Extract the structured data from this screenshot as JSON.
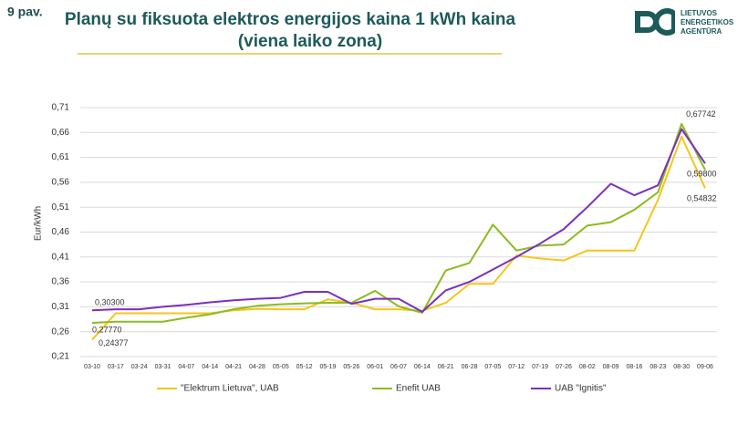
{
  "figure_label": "9 pav.",
  "logo": [
    "LIETUVOS",
    "ENERGETIKOS",
    "AGENTŪRA"
  ],
  "chart_data": {
    "type": "line",
    "title": [
      "Planų su fiksuota elektros energijos kaina 1 kWh kaina",
      "(viena laiko zona)"
    ],
    "y_label": "Eur/kWh",
    "categories": [
      "03-10",
      "03-17",
      "03-24",
      "03-31",
      "04-07",
      "04-14",
      "04-21",
      "04-28",
      "05-05",
      "05-12",
      "05-19",
      "05-26",
      "06-01",
      "06-07",
      "06-14",
      "06-21",
      "06-28",
      "07-05",
      "07-12",
      "07-19",
      "07-26",
      "08-02",
      "08-09",
      "08-16",
      "08-23",
      "08-30",
      "09-06"
    ],
    "ylim": [
      0.21,
      0.71
    ],
    "yticks": [
      {
        "value": 0.21,
        "label": "0,21"
      },
      {
        "value": 0.26,
        "label": "0,26"
      },
      {
        "value": 0.31,
        "label": "0,31"
      },
      {
        "value": 0.36,
        "label": "0,36"
      },
      {
        "value": 0.41,
        "label": "0,41"
      },
      {
        "value": 0.46,
        "label": "0,46"
      },
      {
        "value": 0.51,
        "label": "0,51"
      },
      {
        "value": 0.56,
        "label": "0,56"
      },
      {
        "value": 0.61,
        "label": "0,61"
      },
      {
        "value": 0.66,
        "label": "0,66"
      },
      {
        "value": 0.71,
        "label": "0,71"
      }
    ],
    "grid": true,
    "legend": "bottom",
    "series": [
      {
        "name": "\"Elektrum Lietuva\", UAB",
        "color": "#f5c518",
        "values": [
          0.24377,
          0.297,
          0.297,
          0.297,
          0.297,
          0.297,
          0.303,
          0.306,
          0.305,
          0.305,
          0.325,
          0.318,
          0.305,
          0.305,
          0.302,
          0.318,
          0.356,
          0.356,
          0.413,
          0.407,
          0.403,
          0.423,
          0.423,
          0.423,
          0.525,
          0.652,
          0.54832
        ],
        "value_labels": [
          "0,24377",
          null,
          null,
          null,
          null,
          null,
          null,
          null,
          null,
          null,
          null,
          null,
          null,
          null,
          null,
          null,
          null,
          null,
          null,
          null,
          null,
          null,
          null,
          null,
          null,
          null,
          "0,54832"
        ]
      },
      {
        "name": "Enefit UAB",
        "color": "#8dbb1e",
        "values": [
          0.2777,
          0.28,
          0.28,
          0.28,
          0.288,
          0.295,
          0.305,
          0.312,
          0.315,
          0.317,
          0.318,
          0.318,
          0.342,
          0.311,
          0.298,
          0.383,
          0.398,
          0.475,
          0.423,
          0.433,
          0.435,
          0.473,
          0.48,
          0.505,
          0.54,
          0.67742,
          0.585
        ],
        "value_labels": [
          "0,27770",
          null,
          null,
          null,
          null,
          null,
          null,
          null,
          null,
          null,
          null,
          null,
          null,
          null,
          null,
          null,
          null,
          null,
          null,
          null,
          null,
          null,
          null,
          null,
          null,
          "0,67742",
          null
        ]
      },
      {
        "name": "UAB \"Ignitis\"",
        "color": "#7b2fbe",
        "values": [
          0.303,
          0.305,
          0.305,
          0.31,
          0.314,
          0.319,
          0.323,
          0.326,
          0.328,
          0.34,
          0.34,
          0.316,
          0.326,
          0.326,
          0.3,
          0.343,
          0.36,
          0.385,
          0.41,
          0.437,
          0.466,
          0.51,
          0.557,
          0.534,
          0.554,
          0.667,
          0.598
        ],
        "value_labels": [
          "0,30300",
          null,
          null,
          null,
          null,
          null,
          null,
          null,
          null,
          null,
          null,
          null,
          null,
          null,
          null,
          null,
          null,
          null,
          null,
          null,
          null,
          null,
          null,
          null,
          null,
          null,
          "0,59800"
        ]
      }
    ]
  }
}
